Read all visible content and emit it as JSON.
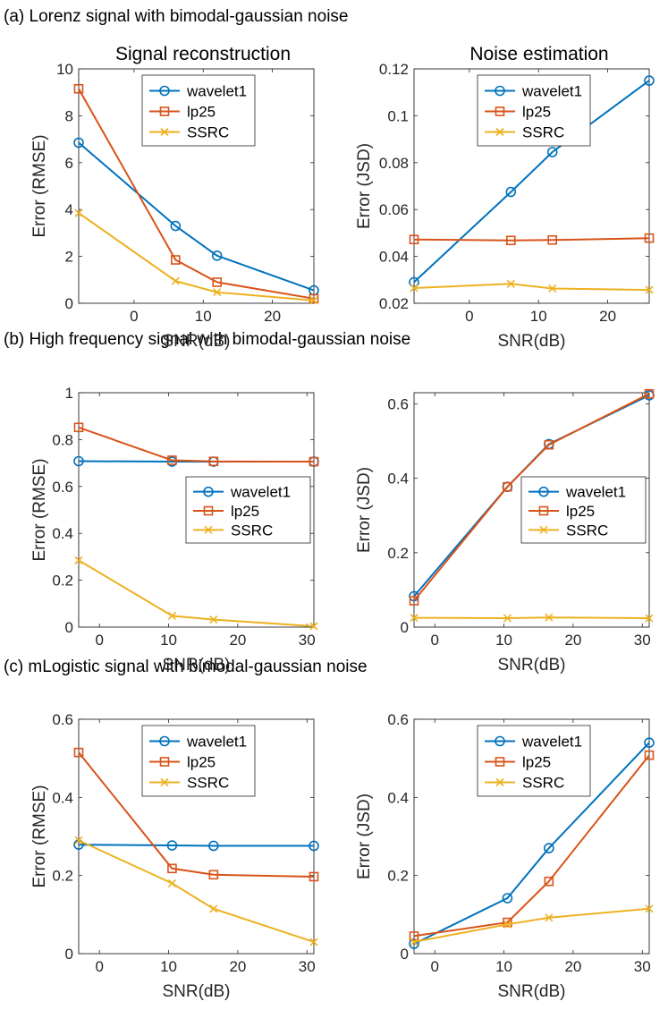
{
  "colors": {
    "wavelet1": "#0072BD",
    "lp25": "#D95319",
    "SSRC": "#EDB120"
  },
  "section_titles": [
    "(a) Lorenz signal with bimodal-gaussian noise",
    "(b) High frequency signal with bimodal-gaussian noise",
    "(c) mLogistic signal with bimodal-gaussian noise"
  ],
  "column_titles": [
    "Signal reconstruction",
    "Noise estimation"
  ],
  "chart_data": [
    {
      "type": "line",
      "row": 0,
      "col": 0,
      "xlabel": "SNR(dB)",
      "ylabel": "Error (RMSE)",
      "xlim": [
        -8,
        26
      ],
      "ylim": [
        0,
        10
      ],
      "xticks": [
        0,
        10,
        20
      ],
      "xtick_labels": [
        "0",
        "10",
        "20"
      ],
      "yticks": [
        0,
        2,
        4,
        6,
        8,
        10
      ],
      "ytick_labels": [
        "0",
        "2",
        "4",
        "6",
        "8",
        "10"
      ],
      "legend": "top-center",
      "x": [
        -8,
        6,
        12,
        26
      ],
      "series": [
        {
          "name": "wavelet1",
          "marker": "circle",
          "values": [
            6.85,
            3.3,
            2.03,
            0.55
          ]
        },
        {
          "name": "lp25",
          "marker": "square",
          "values": [
            9.15,
            1.85,
            0.9,
            0.2
          ]
        },
        {
          "name": "SSRC",
          "marker": "x",
          "values": [
            3.85,
            0.95,
            0.47,
            0.12
          ]
        }
      ]
    },
    {
      "type": "line",
      "row": 0,
      "col": 1,
      "xlabel": "SNR(dB)",
      "ylabel": "Error (JSD)",
      "xlim": [
        -8,
        26
      ],
      "ylim": [
        0.02,
        0.12
      ],
      "xticks": [
        0,
        10,
        20
      ],
      "xtick_labels": [
        "0",
        "10",
        "20"
      ],
      "yticks": [
        0.02,
        0.04,
        0.06,
        0.08,
        0.1,
        0.12
      ],
      "ytick_labels": [
        "0.02",
        "0.04",
        "0.06",
        "0.08",
        "0.1",
        "0.12"
      ],
      "legend": "top-center",
      "x": [
        -8,
        6,
        12,
        26
      ],
      "series": [
        {
          "name": "wavelet1",
          "marker": "circle",
          "values": [
            0.029,
            0.0675,
            0.0845,
            0.115
          ]
        },
        {
          "name": "lp25",
          "marker": "square",
          "values": [
            0.0472,
            0.0468,
            0.047,
            0.0478
          ]
        },
        {
          "name": "SSRC",
          "marker": "x",
          "values": [
            0.0265,
            0.0283,
            0.0263,
            0.0257
          ]
        }
      ]
    },
    {
      "type": "line",
      "row": 1,
      "col": 0,
      "xlabel": "SNR(dB)",
      "ylabel": "Error (RMSE)",
      "xlim": [
        -3,
        31
      ],
      "ylim": [
        0,
        1
      ],
      "xticks": [
        0,
        10,
        20,
        30
      ],
      "xtick_labels": [
        "0",
        "10",
        "20",
        "30"
      ],
      "yticks": [
        0,
        0.2,
        0.4,
        0.6,
        0.8,
        1
      ],
      "ytick_labels": [
        "0",
        "0.2",
        "0.4",
        "0.6",
        "0.8",
        "1"
      ],
      "legend": "center-right",
      "x": [
        -3,
        10.5,
        16.5,
        31
      ],
      "series": [
        {
          "name": "wavelet1",
          "marker": "circle",
          "values": [
            0.708,
            0.706,
            0.706,
            0.706
          ]
        },
        {
          "name": "lp25",
          "marker": "square",
          "values": [
            0.852,
            0.712,
            0.707,
            0.706
          ]
        },
        {
          "name": "SSRC",
          "marker": "x",
          "values": [
            0.285,
            0.048,
            0.032,
            0.004
          ]
        }
      ]
    },
    {
      "type": "line",
      "row": 1,
      "col": 1,
      "xlabel": "SNR(dB)",
      "ylabel": "Error (JSD)",
      "xlim": [
        -3,
        31
      ],
      "ylim": [
        0,
        0.63
      ],
      "xticks": [
        0,
        10,
        20,
        30
      ],
      "xtick_labels": [
        "0",
        "10",
        "20",
        "30"
      ],
      "yticks": [
        0,
        0.2,
        0.4,
        0.6
      ],
      "ytick_labels": [
        "0",
        "0.2",
        "0.4",
        "0.6"
      ],
      "legend": "center-right",
      "x": [
        -3,
        10.5,
        16.5,
        31
      ],
      "series": [
        {
          "name": "wavelet1",
          "marker": "circle",
          "values": [
            0.083,
            0.377,
            0.492,
            0.623
          ]
        },
        {
          "name": "lp25",
          "marker": "square",
          "values": [
            0.071,
            0.377,
            0.49,
            0.627
          ]
        },
        {
          "name": "SSRC",
          "marker": "x",
          "values": [
            0.025,
            0.024,
            0.026,
            0.024
          ]
        }
      ]
    },
    {
      "type": "line",
      "row": 2,
      "col": 0,
      "xlabel": "SNR(dB)",
      "ylabel": "Error (RMSE)",
      "xlim": [
        -3,
        31
      ],
      "ylim": [
        0,
        0.6
      ],
      "xticks": [
        0,
        10,
        20,
        30
      ],
      "xtick_labels": [
        "0",
        "10",
        "20",
        "30"
      ],
      "yticks": [
        0,
        0.2,
        0.4,
        0.6
      ],
      "ytick_labels": [
        "0",
        "0.2",
        "0.4",
        "0.6"
      ],
      "legend": "top-center",
      "x": [
        -3,
        10.5,
        16.5,
        31
      ],
      "series": [
        {
          "name": "wavelet1",
          "marker": "circle",
          "values": [
            0.279,
            0.277,
            0.276,
            0.276
          ]
        },
        {
          "name": "lp25",
          "marker": "square",
          "values": [
            0.515,
            0.218,
            0.202,
            0.197
          ]
        },
        {
          "name": "SSRC",
          "marker": "x",
          "values": [
            0.29,
            0.18,
            0.115,
            0.03
          ]
        }
      ]
    },
    {
      "type": "line",
      "row": 2,
      "col": 1,
      "xlabel": "SNR(dB)",
      "ylabel": "Error (JSD)",
      "xlim": [
        -3,
        31
      ],
      "ylim": [
        0,
        0.6
      ],
      "xticks": [
        0,
        10,
        20,
        30
      ],
      "xtick_labels": [
        "0",
        "10",
        "20",
        "30"
      ],
      "yticks": [
        0,
        0.2,
        0.4,
        0.6
      ],
      "ytick_labels": [
        "0",
        "0.2",
        "0.4",
        "0.6"
      ],
      "legend": "top-center",
      "x": [
        -3,
        10.5,
        16.5,
        31
      ],
      "series": [
        {
          "name": "wavelet1",
          "marker": "circle",
          "values": [
            0.025,
            0.142,
            0.27,
            0.54
          ]
        },
        {
          "name": "lp25",
          "marker": "square",
          "values": [
            0.045,
            0.08,
            0.185,
            0.508
          ]
        },
        {
          "name": "SSRC",
          "marker": "x",
          "values": [
            0.03,
            0.075,
            0.092,
            0.115
          ]
        }
      ]
    }
  ]
}
